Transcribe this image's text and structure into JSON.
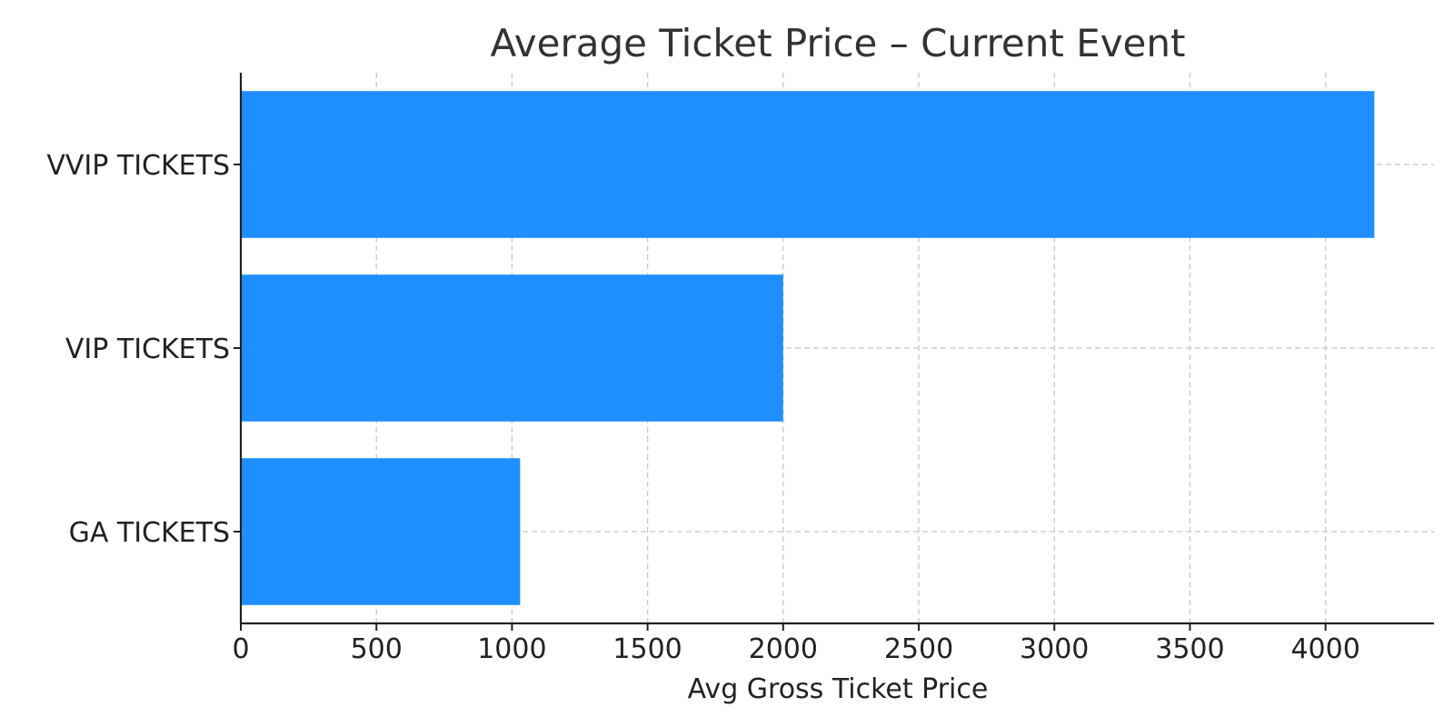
{
  "chart_data": {
    "type": "bar",
    "orientation": "horizontal",
    "title": "Average Ticket Price – Current Event",
    "xlabel": "Avg Gross Ticket Price",
    "ylabel": "",
    "categories": [
      "GA TICKETS",
      "VIP TICKETS",
      "VVIP TICKETS"
    ],
    "values": [
      1030,
      2000,
      4180
    ],
    "xlim": [
      0,
      4400
    ],
    "xticks": [
      0,
      500,
      1000,
      1500,
      2000,
      2500,
      3000,
      3500,
      4000
    ],
    "grid": true,
    "bar_color": "#1f8fff"
  }
}
